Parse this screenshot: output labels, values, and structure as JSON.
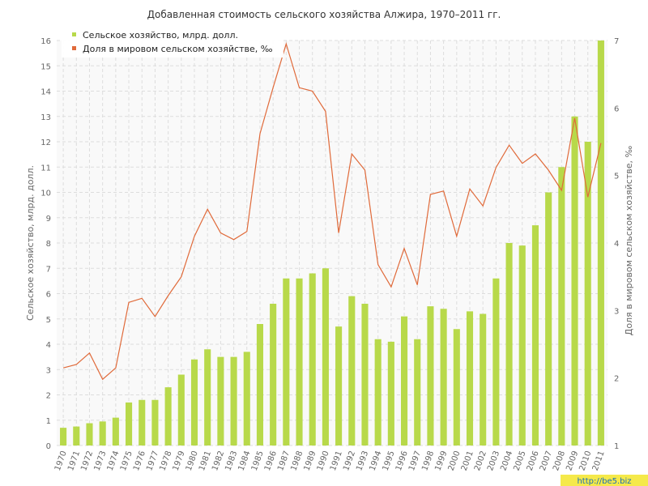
{
  "chart_data": {
    "type": "bar",
    "title": "Добавленная стоимость сельского хозяйства Алжира, 1970–2011 гг.",
    "ylabel": "Сельское хозяйство, млрд. долл.",
    "y2label": "Доля в мировом сельском хозяйстве, ‰",
    "ylim": [
      0,
      16
    ],
    "y2lim": [
      1,
      7
    ],
    "yticks": [
      "0",
      "1",
      "2",
      "3",
      "4",
      "5",
      "6",
      "7",
      "8",
      "9",
      "10",
      "11",
      "12",
      "13",
      "14",
      "15",
      "16"
    ],
    "y2ticks": [
      "1",
      "2",
      "3",
      "4",
      "5",
      "6",
      "7"
    ],
    "grid": true,
    "legend_position": "top-left",
    "categories": [
      "1970",
      "1971",
      "1972",
      "1973",
      "1974",
      "1975",
      "1976",
      "1977",
      "1978",
      "1979",
      "1980",
      "1981",
      "1982",
      "1983",
      "1984",
      "1985",
      "1986",
      "1987",
      "1988",
      "1989",
      "1990",
      "1991",
      "1992",
      "1993",
      "1994",
      "1995",
      "1996",
      "1997",
      "1998",
      "1999",
      "2000",
      "2001",
      "2002",
      "2003",
      "2004",
      "2005",
      "2006",
      "2007",
      "2008",
      "2009",
      "2010",
      "2011"
    ],
    "series": [
      {
        "name": "Сельское хозяйство, млрд. долл.",
        "type": "bar",
        "axis": "left",
        "color": "#b8d94a",
        "values": [
          0.7,
          0.75,
          0.88,
          0.95,
          1.1,
          1.7,
          1.8,
          1.8,
          2.3,
          2.8,
          3.4,
          3.8,
          3.5,
          3.5,
          3.7,
          4.8,
          5.6,
          6.6,
          6.6,
          6.8,
          7.0,
          4.7,
          5.9,
          5.6,
          4.2,
          4.1,
          5.1,
          4.2,
          5.5,
          5.4,
          4.6,
          5.3,
          5.2,
          6.6,
          8.0,
          7.9,
          8.7,
          10.0,
          11.0,
          13.0,
          12.0,
          16.0
        ]
      },
      {
        "name": "Доля в мировом сельском хозяйстве, ‰",
        "type": "line",
        "axis": "right",
        "color": "#e06a3a",
        "values": [
          2.15,
          2.2,
          2.37,
          1.98,
          2.15,
          3.12,
          3.18,
          2.91,
          3.22,
          3.5,
          4.1,
          4.5,
          4.15,
          4.05,
          4.17,
          5.62,
          6.3,
          6.95,
          6.3,
          6.25,
          5.95,
          4.15,
          5.32,
          5.08,
          3.68,
          3.35,
          3.92,
          3.38,
          4.72,
          4.77,
          4.1,
          4.8,
          4.55,
          5.12,
          5.45,
          5.18,
          5.32,
          5.08,
          4.78,
          5.85,
          4.68,
          5.48
        ]
      }
    ]
  },
  "watermark": "http://be5.biz",
  "colors": {
    "grid": "#dddddd",
    "plot_background": "#f9f9f9",
    "watermark_background": "#f5e94a"
  }
}
